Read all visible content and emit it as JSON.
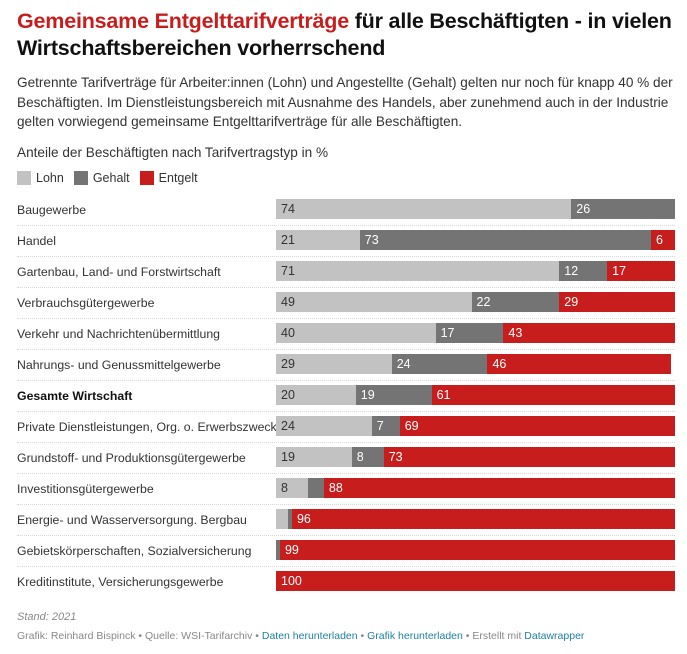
{
  "header": {
    "title_highlight": "Gemeinsame Entgelttarifverträge",
    "title_rest": " für alle Beschäftigten - in vielen Wirtschaftsbereichen vorherrschend",
    "intro": "Getrennte Tarifverträge für Arbeiter:innen (Lohn) und Angestellte (Gehalt) gelten nur noch für knapp 40 % der Beschäftigten. Im Dienstleistungsbereich mit Ausnahme des Handels, aber zunehmend auch in der Industrie gelten vorwiegend gemeinsame Entgelttarifverträge für alle Beschäftigten."
  },
  "colors": {
    "lohn": "#c2c2c2",
    "gehalt": "#747474",
    "entgelt": "#c71e1d",
    "highlight": "#c71e1d",
    "link": "#1d81a2"
  },
  "chart_data": {
    "type": "bar",
    "orientation": "horizontal",
    "stacked": true,
    "title": "Anteile der Beschäftigten nach Tarifvertragstyp in %",
    "xlabel": "",
    "ylabel": "",
    "xlim": [
      0,
      100
    ],
    "legend_position": "top-left",
    "legend": [
      "Lohn",
      "Gehalt",
      "Entgelt"
    ],
    "categories": [
      "Baugewerbe",
      "Handel",
      "Gartenbau, Land- und Forstwirtschaft",
      "Verbrauchsgütergewerbe",
      "Verkehr und Nachrichtenübermittlung",
      "Nahrungs- und Genussmittelgewerbe",
      "Gesamte Wirtschaft",
      "Private Dienstleistungen, Org. o. Erwerbszweck",
      "Grundstoff- und Produktionsgütergewerbe",
      "Investitionsgütergewerbe",
      "Energie- und Wasserversorgung. Bergbau",
      "Gebietskörperschaften, Sozialversicherung",
      "Kreditinstitute, Versicherungsgewerbe"
    ],
    "bold_categories": [
      "Gesamte Wirtschaft"
    ],
    "series": [
      {
        "name": "Lohn",
        "values": [
          74,
          21,
          71,
          49,
          40,
          29,
          20,
          24,
          19,
          8,
          3,
          0,
          0
        ]
      },
      {
        "name": "Gehalt",
        "values": [
          26,
          73,
          12,
          22,
          17,
          24,
          19,
          7,
          8,
          4,
          1,
          1,
          0
        ]
      },
      {
        "name": "Entgelt",
        "values": [
          0,
          6,
          17,
          29,
          43,
          46,
          61,
          69,
          73,
          88,
          96,
          99,
          100
        ]
      }
    ],
    "data_labels": {
      "Lohn": [
        "74",
        "21",
        "71",
        "49",
        "40",
        "29",
        "20",
        "24",
        "19",
        "8",
        "",
        "",
        ""
      ],
      "Gehalt": [
        "26",
        "73",
        "12",
        "22",
        "17",
        "24",
        "19",
        "7",
        "8",
        "",
        "",
        "",
        ""
      ],
      "Entgelt": [
        "",
        "6",
        "17",
        "29",
        "43",
        "46",
        "61",
        "69",
        "73",
        "88",
        "96",
        "99",
        "100"
      ]
    }
  },
  "footer": {
    "notes": "Stand: 2021",
    "byline": "Grafik: Reinhard Bispinck",
    "sep": " • ",
    "source": "Quelle: WSI-Tarifarchiv",
    "get_data": "Daten herunterladen",
    "get_image": "Grafik herunterladen",
    "made_with_prefix": "Erstellt mit ",
    "made_with": "Datawrapper"
  }
}
